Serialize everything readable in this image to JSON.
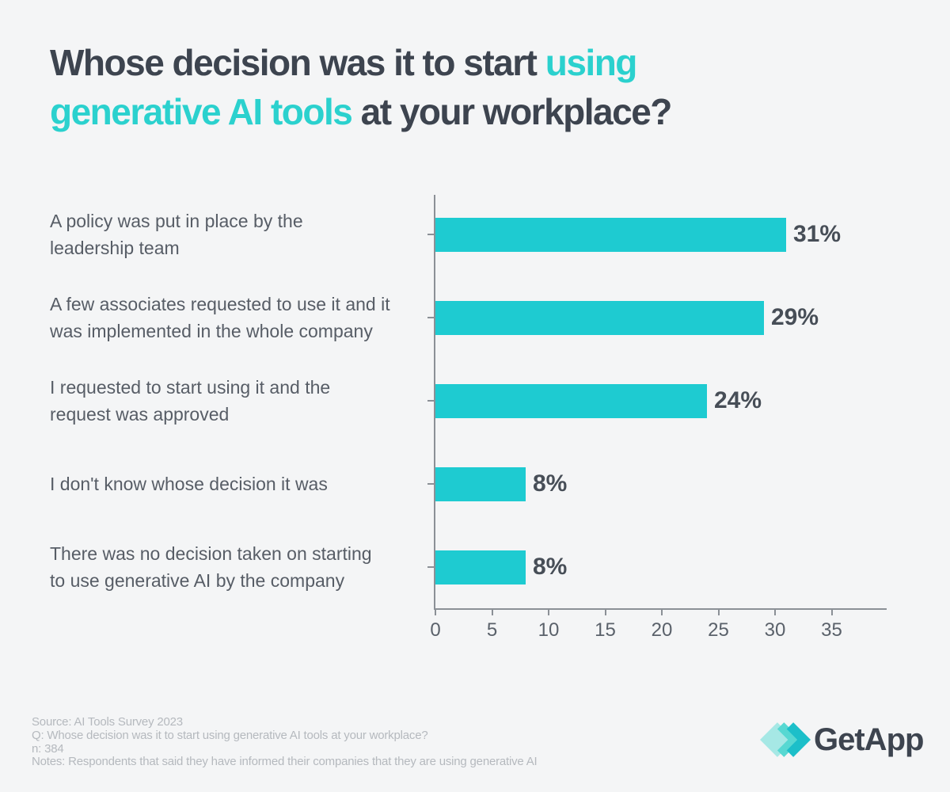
{
  "title": {
    "line1": {
      "dark": "Whose decision was it to start ",
      "accent": "using"
    },
    "line2": {
      "accent": "generative AI tools",
      "dark": " at your workplace?"
    }
  },
  "chart_data": {
    "type": "bar",
    "orientation": "horizontal",
    "categories": [
      "A policy was put in place by the\nleadership team",
      "A few associates requested to use it and it\nwas implemented in the whole company",
      "I requested to start using it and the\nrequest was approved",
      "I don't know whose decision it was",
      "There was no decision taken on starting\nto use generative AI by the company"
    ],
    "values": [
      31,
      29,
      24,
      8,
      8
    ],
    "value_labels": [
      "31%",
      "29%",
      "24%",
      "8%",
      "8%"
    ],
    "xlim": [
      0,
      35
    ],
    "x_ticks": [
      0,
      5,
      10,
      15,
      20,
      25,
      30,
      35
    ],
    "grid": false,
    "legend": false,
    "bar_color": "#1ECBD1",
    "title": "Whose decision was it to start using generative AI tools at your workplace?"
  },
  "footer": {
    "lines": [
      "Source: AI Tools Survey 2023",
      "Q: Whose decision was it to start using generative AI tools at your workplace?",
      "n: 384",
      "Notes: Respondents that said they have informed their companies that they are using generative AI"
    ]
  },
  "logo": {
    "text": "GetApp"
  },
  "colors": {
    "background": "#F4F5F6",
    "accent": "#2BD1CE",
    "bar": "#1ECBD1",
    "title_text": "#3D444F",
    "category_label": "#575D66",
    "value_label": "#474E57",
    "axis": "#8B9096",
    "tick_label": "#5A616A",
    "footnote": "#B5B9BE",
    "logo_mark_light": "#A6E8E5",
    "logo_mark_medium": "#57D8D2",
    "logo_mark_dark": "#1CBFC9"
  }
}
